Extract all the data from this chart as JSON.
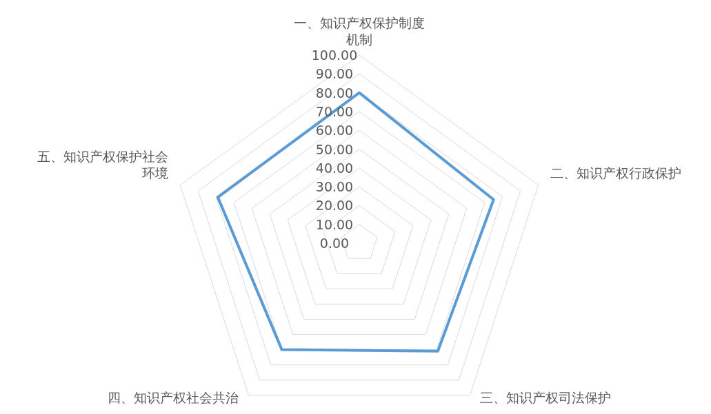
{
  "chart_data": {
    "type": "radar",
    "categories": [
      "一、知识产权保护制度机制",
      "二、知识产权行政保护",
      "三、知识产权司法保护",
      "四、知识产权社会共治",
      "五、知识产权保护社会环境"
    ],
    "series": [
      {
        "color": "#5b9bd5",
        "values": [
          80,
          75,
          71,
          70,
          79
        ]
      }
    ],
    "ylim": [
      0,
      100
    ],
    "yticks": [
      {
        "value": 0,
        "label": "0.00"
      },
      {
        "value": 10,
        "label": "10.00"
      },
      {
        "value": 20,
        "label": "20.00"
      },
      {
        "value": 30,
        "label": "30.00"
      },
      {
        "value": 40,
        "label": "40.00"
      },
      {
        "value": 50,
        "label": "50.00"
      },
      {
        "value": 60,
        "label": "60.00"
      },
      {
        "value": 70,
        "label": "70.00"
      },
      {
        "value": 80,
        "label": "80.00"
      },
      {
        "value": 90,
        "label": "90.00"
      },
      {
        "value": 100,
        "label": "100.00"
      }
    ],
    "grid": true,
    "marker": "none"
  }
}
